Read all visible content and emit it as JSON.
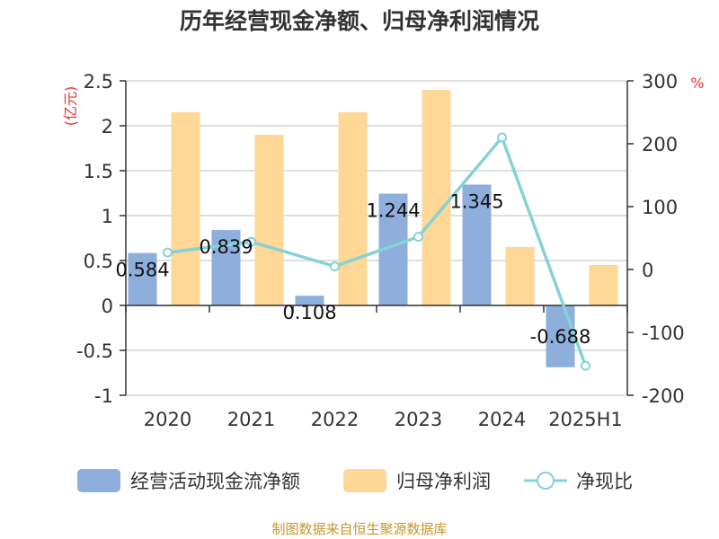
{
  "chart_data": {
    "type": "bar",
    "title": "历年经营现金净额、归母净利润情况",
    "categories": [
      "2020",
      "2021",
      "2022",
      "2023",
      "2024",
      "2025H1"
    ],
    "left_axis": {
      "unit": "(亿元)",
      "ylim": [
        -1,
        2.5
      ],
      "ticks": [
        "2.5",
        "2",
        "1.5",
        "1",
        "0.5",
        "0",
        "-0.5",
        "-1"
      ]
    },
    "right_axis": {
      "unit": "%",
      "ylim": [
        -200,
        300
      ],
      "ticks": [
        "300",
        "200",
        "100",
        "0",
        "-100",
        "-200"
      ]
    },
    "series": [
      {
        "name": "经营活动现金流净额",
        "kind": "bar",
        "axis": "left",
        "color": "#8eaedc",
        "values": [
          0.584,
          0.839,
          0.108,
          1.244,
          1.345,
          -0.688
        ],
        "labels": [
          "0.584",
          "0.839",
          "0.108",
          "1.244",
          "1.345",
          "-0.688"
        ]
      },
      {
        "name": "归母净利润",
        "kind": "bar",
        "axis": "left",
        "color": "#ffd796",
        "values": [
          2.15,
          1.9,
          2.15,
          2.4,
          0.65,
          0.45
        ]
      },
      {
        "name": "净现比",
        "kind": "line",
        "axis": "right",
        "color": "#86d2d6",
        "values": [
          27,
          44,
          5,
          52,
          210,
          -153
        ]
      }
    ],
    "grid": true,
    "legend_position": "bottom",
    "source": "制图数据来自恒生聚源数据库"
  }
}
